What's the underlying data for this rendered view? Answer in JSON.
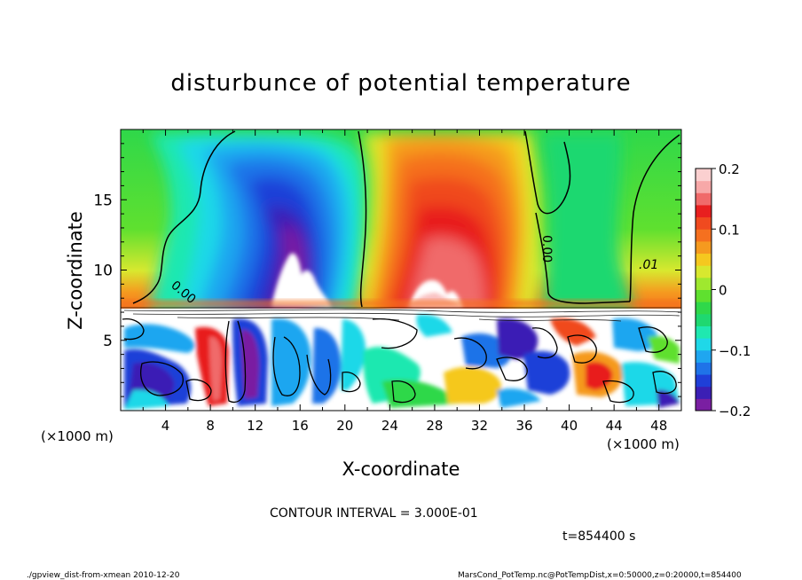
{
  "chart_data": {
    "type": "heatmap",
    "title": "disturbunce of potential temperature",
    "xlabel": "X-coordinate",
    "ylabel": "Z-coordinate",
    "x_unit_left": "(×1000 m)",
    "x_unit_right": "(×1000 m)",
    "xlim": [
      0,
      50
    ],
    "ylim": [
      0,
      20
    ],
    "x_ticks": [
      4,
      8,
      12,
      16,
      20,
      24,
      28,
      32,
      36,
      40,
      44,
      48
    ],
    "y_ticks": [
      5,
      10,
      15
    ],
    "colorbar": {
      "range": [
        -0.2,
        0.2
      ],
      "ticks": [
        "0.2",
        "0.1",
        "0",
        "−0.1",
        "−0.2"
      ],
      "colors": [
        "#7a1fa2",
        "#3b1fb5",
        "#1f3fd8",
        "#1f73e8",
        "#1fa6f0",
        "#1fd8e8",
        "#1fe8b0",
        "#1fd870",
        "#2fd84a",
        "#5fe02f",
        "#9fe82f",
        "#d8e82f",
        "#f5c81f",
        "#f59a1f",
        "#f5701f",
        "#f04a1f",
        "#e81f1f",
        "#f06a6a",
        "#f7a8a8",
        "#fbd0d0"
      ]
    },
    "contour_labels": [
      "0.00",
      ".01"
    ],
    "contour_interval_text": "CONTOUR INTERVAL = 3.000E-01",
    "time_text": "t=854400 s",
    "grid": false,
    "features": [
      {
        "kind": "cold anomaly",
        "x_center": 15.5,
        "z_range": [
          7.5,
          20
        ],
        "peak": -0.2
      },
      {
        "kind": "warm anomaly",
        "x_center": 28,
        "z_range": [
          7.5,
          20
        ],
        "peak": 0.2
      },
      {
        "kind": "turbulent boundary layer",
        "z_range": [
          0,
          7.5
        ]
      }
    ]
  },
  "footer": {
    "left": "./gpview_dist-from-xmean   2010-12-20",
    "right": "MarsCond_PotTemp.nc@PotTempDist,x=0:50000,z=0:20000,t=854400"
  }
}
